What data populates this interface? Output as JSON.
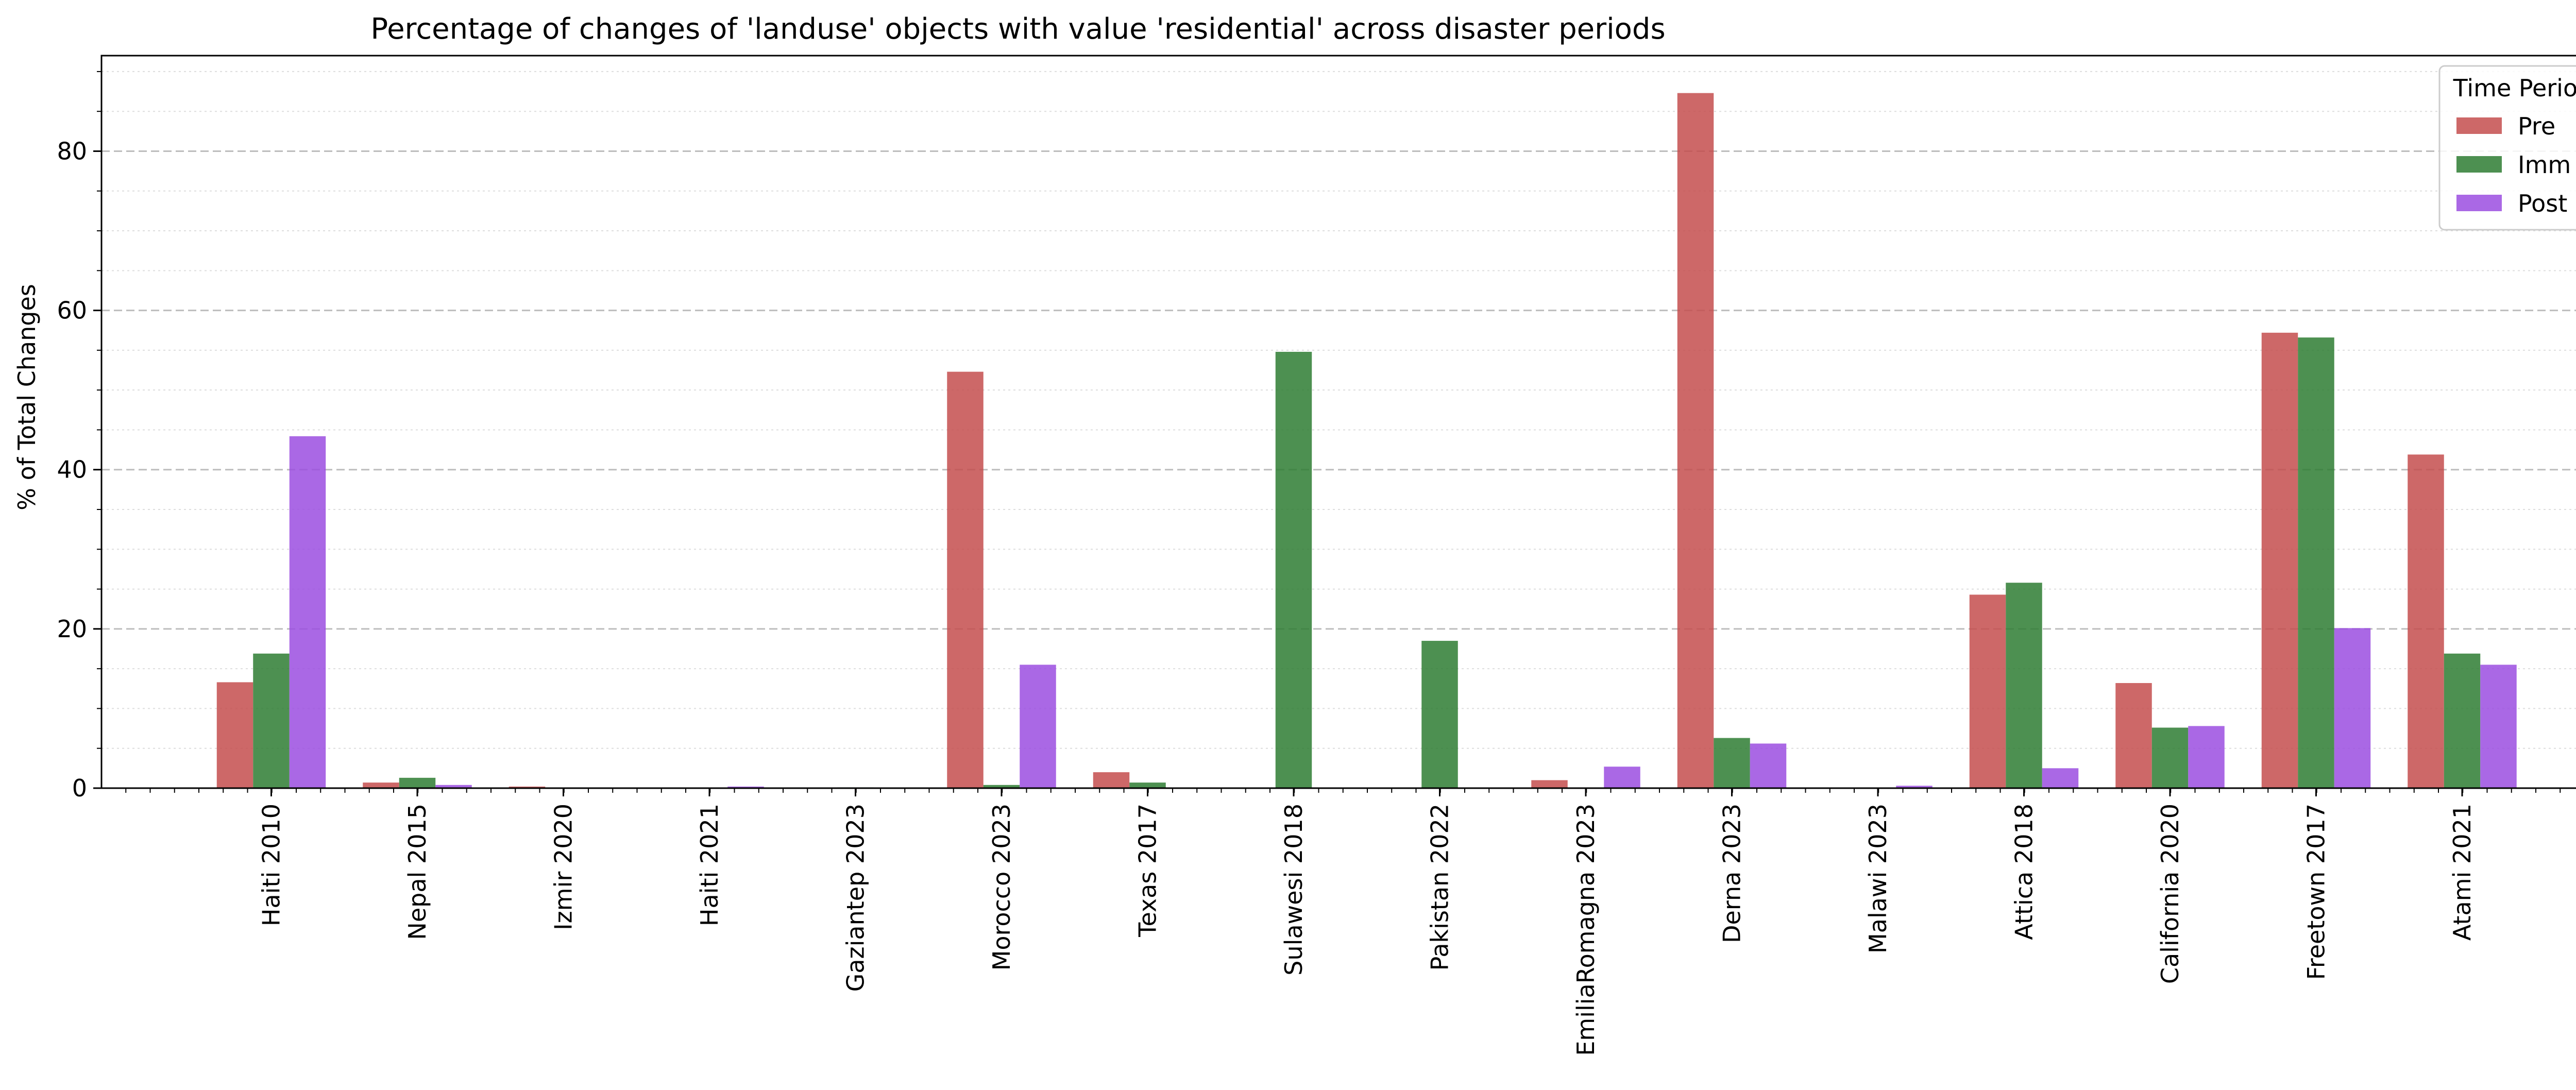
{
  "chart_data": {
    "type": "bar",
    "title": "Percentage of changes of 'landuse' objects with value 'residential' across disaster periods",
    "xlabel": "",
    "ylabel": "% of Total Changes",
    "ylim": [
      0,
      92
    ],
    "yticks": [
      0,
      20,
      40,
      60,
      80
    ],
    "grid": "y-major-dashed, y-minor-dotted",
    "legend": {
      "title": "Time Period",
      "position": "top-right"
    },
    "categories": [
      "Haiti 2010",
      "Nepal 2015",
      "Izmir 2020",
      "Haiti 2021",
      "Gaziantep 2023",
      "Morocco 2023",
      "Texas 2017",
      "Sulawesi 2018",
      "Pakistan 2022",
      "EmiliaRomagna 2023",
      "Derna 2023",
      "Malawi 2023",
      "Attica 2018",
      "California 2020",
      "Freetown 2017",
      "Atami 2021"
    ],
    "series": [
      {
        "name": "Pre",
        "color": "#c44e4e",
        "values": [
          13.3,
          0.7,
          0.2,
          0.0,
          0.0,
          52.3,
          2.0,
          0.0,
          0.0,
          1.0,
          87.3,
          0.0,
          24.3,
          13.2,
          57.2,
          41.9
        ]
      },
      {
        "name": "Imm",
        "color": "#2e7d32",
        "values": [
          16.9,
          1.3,
          0.0,
          0.0,
          0.1,
          0.4,
          0.7,
          54.8,
          18.5,
          0.0,
          6.3,
          0.0,
          25.8,
          7.6,
          56.6,
          16.9
        ]
      },
      {
        "name": "Post",
        "color": "#9b4de0",
        "values": [
          44.2,
          0.4,
          0.0,
          0.2,
          0.0,
          15.5,
          0.0,
          0.0,
          0.0,
          2.7,
          5.6,
          0.3,
          2.5,
          7.8,
          20.1,
          15.5
        ]
      }
    ]
  }
}
